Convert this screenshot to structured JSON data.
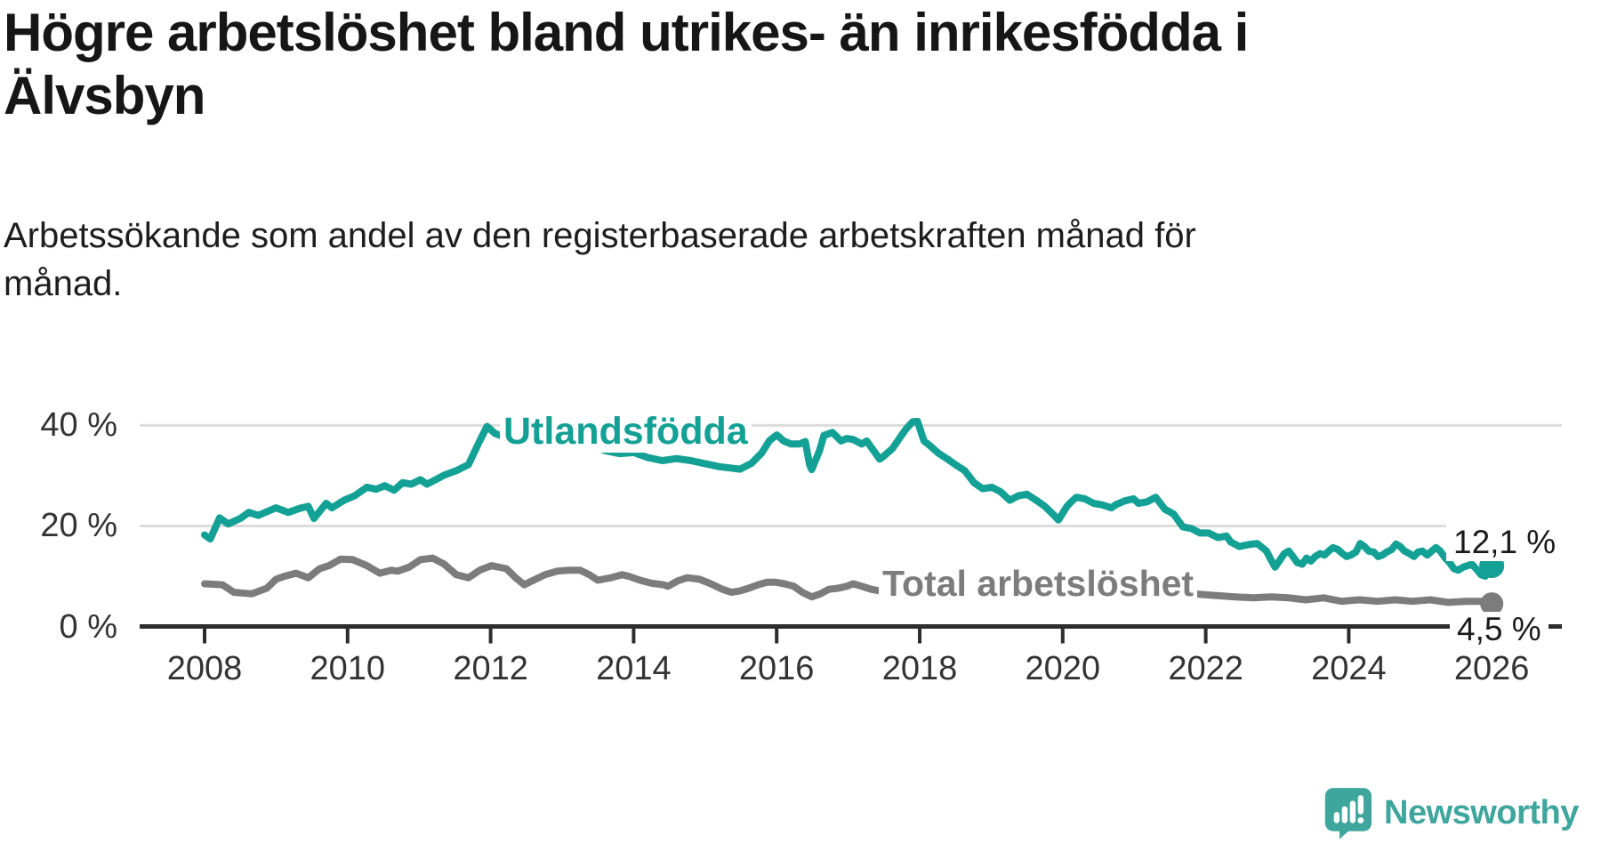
{
  "title_line1": "Högre arbetslöshet bland utrikes- än inrikesfödda i",
  "title_line2": "Älvsbyn",
  "subtitle_line1": "Arbetssökande som andel av den registerbaserade arbetskraften månad för",
  "subtitle_line2": "månad.",
  "chart": {
    "y_axis": {
      "ticks": [
        {
          "label": "0 %",
          "value": 0
        },
        {
          "label": "20 %",
          "value": 20
        },
        {
          "label": "40 %",
          "value": 40
        }
      ]
    },
    "x_axis": {
      "ticks": [
        {
          "label": "2008",
          "year": 2008
        },
        {
          "label": "2010",
          "year": 2010
        },
        {
          "label": "2012",
          "year": 2012
        },
        {
          "label": "2014",
          "year": 2014
        },
        {
          "label": "2016",
          "year": 2016
        },
        {
          "label": "2018",
          "year": 2018
        },
        {
          "label": "2020",
          "year": 2020
        },
        {
          "label": "2022",
          "year": 2022
        },
        {
          "label": "2024",
          "year": 2024
        },
        {
          "label": "2026",
          "year": 2026
        }
      ]
    },
    "series_labels": {
      "utlandsfodda": "Utlandsfödda",
      "total": "Total arbetslöshet"
    },
    "end_labels": {
      "utlandsfodda": "12,1 %",
      "total": "4,5 %"
    }
  },
  "chart_data": {
    "type": "line",
    "title": "Högre arbetslöshet bland utrikes- än inrikesfödda i Älvsbyn",
    "subtitle": "Arbetssökande som andel av den registerbaserade arbetskraften månad för månad.",
    "unit": "percent",
    "x_range": [
      2008,
      2026
    ],
    "ylim": [
      0,
      44
    ],
    "grid": "horizontal",
    "legend_position": "inline-labels",
    "series": [
      {
        "name": "Utlandsfödda",
        "color": "#13a095",
        "end_label": "12,1 %",
        "end_value": 12.1,
        "points": [
          [
            2008.0,
            18.2
          ],
          [
            2008.08,
            17.4
          ],
          [
            2008.21,
            21.6
          ],
          [
            2008.33,
            20.4
          ],
          [
            2008.5,
            21.5
          ],
          [
            2008.62,
            22.7
          ],
          [
            2008.75,
            22.1
          ],
          [
            2009.0,
            23.6
          ],
          [
            2009.17,
            22.7
          ],
          [
            2009.33,
            23.5
          ],
          [
            2009.45,
            23.9
          ],
          [
            2009.53,
            21.5
          ],
          [
            2009.7,
            24.5
          ],
          [
            2009.78,
            23.6
          ],
          [
            2009.95,
            25.1
          ],
          [
            2010.1,
            26.0
          ],
          [
            2010.27,
            27.7
          ],
          [
            2010.4,
            27.3
          ],
          [
            2010.52,
            28.0
          ],
          [
            2010.65,
            27.1
          ],
          [
            2010.77,
            28.6
          ],
          [
            2010.89,
            28.3
          ],
          [
            2011.02,
            29.2
          ],
          [
            2011.11,
            28.3
          ],
          [
            2011.27,
            29.5
          ],
          [
            2011.35,
            30.1
          ],
          [
            2011.52,
            31.0
          ],
          [
            2011.69,
            32.2
          ],
          [
            2011.85,
            37.0
          ],
          [
            2011.95,
            39.8
          ],
          [
            2012.06,
            38.4
          ],
          [
            2012.19,
            37.7
          ],
          [
            2012.25,
            39.8
          ],
          [
            2012.4,
            38.0
          ],
          [
            2012.6,
            37.0
          ],
          [
            2012.8,
            36.4
          ],
          [
            2013.0,
            36.6
          ],
          [
            2013.2,
            35.6
          ],
          [
            2013.4,
            36.0
          ],
          [
            2013.6,
            35.0
          ],
          [
            2013.8,
            34.4
          ],
          [
            2014.0,
            34.6
          ],
          [
            2014.2,
            33.6
          ],
          [
            2014.4,
            33.0
          ],
          [
            2014.6,
            33.4
          ],
          [
            2014.8,
            33.0
          ],
          [
            2015.0,
            32.4
          ],
          [
            2015.2,
            31.8
          ],
          [
            2015.49,
            31.3
          ],
          [
            2015.65,
            32.5
          ],
          [
            2015.79,
            34.5
          ],
          [
            2015.9,
            37.0
          ],
          [
            2016.0,
            38.1
          ],
          [
            2016.1,
            36.9
          ],
          [
            2016.2,
            36.3
          ],
          [
            2016.32,
            36.3
          ],
          [
            2016.4,
            36.8
          ],
          [
            2016.46,
            32.2
          ],
          [
            2016.49,
            31.2
          ],
          [
            2016.6,
            35.0
          ],
          [
            2016.66,
            38.0
          ],
          [
            2016.78,
            38.6
          ],
          [
            2016.9,
            36.9
          ],
          [
            2016.98,
            37.4
          ],
          [
            2017.07,
            37.2
          ],
          [
            2017.19,
            36.3
          ],
          [
            2017.26,
            36.9
          ],
          [
            2017.32,
            35.7
          ],
          [
            2017.44,
            33.3
          ],
          [
            2017.5,
            33.9
          ],
          [
            2017.62,
            35.4
          ],
          [
            2017.75,
            38.1
          ],
          [
            2017.81,
            39.3
          ],
          [
            2017.9,
            40.7
          ],
          [
            2017.97,
            40.8
          ],
          [
            2018.06,
            36.9
          ],
          [
            2018.14,
            36.0
          ],
          [
            2018.26,
            34.5
          ],
          [
            2018.39,
            33.3
          ],
          [
            2018.51,
            32.1
          ],
          [
            2018.63,
            31.0
          ],
          [
            2018.76,
            28.6
          ],
          [
            2018.88,
            27.4
          ],
          [
            2019.01,
            27.7
          ],
          [
            2019.13,
            26.8
          ],
          [
            2019.26,
            25.1
          ],
          [
            2019.38,
            26.0
          ],
          [
            2019.5,
            26.3
          ],
          [
            2019.63,
            25.1
          ],
          [
            2019.75,
            23.9
          ],
          [
            2019.88,
            22.1
          ],
          [
            2019.94,
            21.2
          ],
          [
            2020.06,
            23.9
          ],
          [
            2020.12,
            24.8
          ],
          [
            2020.19,
            25.7
          ],
          [
            2020.31,
            25.4
          ],
          [
            2020.43,
            24.5
          ],
          [
            2020.55,
            24.2
          ],
          [
            2020.68,
            23.6
          ],
          [
            2020.74,
            24.2
          ],
          [
            2020.87,
            25.0
          ],
          [
            2020.99,
            25.4
          ],
          [
            2021.06,
            24.5
          ],
          [
            2021.18,
            24.8
          ],
          [
            2021.3,
            25.7
          ],
          [
            2021.43,
            23.3
          ],
          [
            2021.55,
            22.4
          ],
          [
            2021.68,
            19.8
          ],
          [
            2021.8,
            19.5
          ],
          [
            2021.92,
            18.6
          ],
          [
            2022.04,
            18.6
          ],
          [
            2022.17,
            17.7
          ],
          [
            2022.29,
            18.0
          ],
          [
            2022.35,
            16.8
          ],
          [
            2022.47,
            15.9
          ],
          [
            2022.6,
            16.3
          ],
          [
            2022.72,
            16.5
          ],
          [
            2022.85,
            15.0
          ],
          [
            2022.91,
            13.3
          ],
          [
            2022.97,
            11.8
          ],
          [
            2023.1,
            14.5
          ],
          [
            2023.16,
            15.0
          ],
          [
            2023.22,
            13.9
          ],
          [
            2023.28,
            12.7
          ],
          [
            2023.35,
            12.4
          ],
          [
            2023.41,
            13.6
          ],
          [
            2023.47,
            13.0
          ],
          [
            2023.53,
            13.9
          ],
          [
            2023.6,
            14.5
          ],
          [
            2023.66,
            14.2
          ],
          [
            2023.72,
            15.0
          ],
          [
            2023.78,
            15.7
          ],
          [
            2023.85,
            15.3
          ],
          [
            2023.91,
            14.5
          ],
          [
            2023.97,
            13.9
          ],
          [
            2024.03,
            14.2
          ],
          [
            2024.1,
            14.8
          ],
          [
            2024.16,
            16.5
          ],
          [
            2024.22,
            15.9
          ],
          [
            2024.28,
            15.0
          ],
          [
            2024.35,
            14.8
          ],
          [
            2024.41,
            13.9
          ],
          [
            2024.47,
            14.2
          ],
          [
            2024.53,
            14.8
          ],
          [
            2024.6,
            15.3
          ],
          [
            2024.66,
            16.4
          ],
          [
            2024.72,
            15.9
          ],
          [
            2024.78,
            15.0
          ],
          [
            2024.85,
            14.5
          ],
          [
            2024.91,
            13.9
          ],
          [
            2024.97,
            14.8
          ],
          [
            2025.03,
            15.0
          ],
          [
            2025.1,
            14.2
          ],
          [
            2025.16,
            15.0
          ],
          [
            2025.22,
            15.7
          ],
          [
            2025.28,
            15.0
          ],
          [
            2025.35,
            13.6
          ],
          [
            2025.41,
            12.7
          ],
          [
            2025.47,
            11.5
          ],
          [
            2025.53,
            11.2
          ],
          [
            2025.6,
            11.8
          ],
          [
            2025.66,
            12.1
          ],
          [
            2025.72,
            12.4
          ],
          [
            2025.78,
            11.5
          ],
          [
            2025.85,
            10.3
          ],
          [
            2025.91,
            10.0
          ],
          [
            2026.0,
            12.1
          ]
        ]
      },
      {
        "name": "Total arbetslöshet",
        "color": "#7c7c7c",
        "end_label": "4,5 %",
        "end_value": 4.5,
        "points": [
          [
            2008.0,
            8.5
          ],
          [
            2008.12,
            8.4
          ],
          [
            2008.25,
            8.3
          ],
          [
            2008.41,
            6.8
          ],
          [
            2008.58,
            6.6
          ],
          [
            2008.66,
            6.5
          ],
          [
            2008.87,
            7.6
          ],
          [
            2009.0,
            9.4
          ],
          [
            2009.12,
            10.0
          ],
          [
            2009.28,
            10.6
          ],
          [
            2009.45,
            9.7
          ],
          [
            2009.61,
            11.5
          ],
          [
            2009.74,
            12.1
          ],
          [
            2009.9,
            13.4
          ],
          [
            2010.07,
            13.3
          ],
          [
            2010.27,
            12.1
          ],
          [
            2010.45,
            10.6
          ],
          [
            2010.61,
            11.2
          ],
          [
            2010.7,
            11.0
          ],
          [
            2010.86,
            11.8
          ],
          [
            2011.02,
            13.3
          ],
          [
            2011.19,
            13.6
          ],
          [
            2011.35,
            12.4
          ],
          [
            2011.52,
            10.3
          ],
          [
            2011.69,
            9.7
          ],
          [
            2011.85,
            11.2
          ],
          [
            2012.01,
            12.1
          ],
          [
            2012.22,
            11.5
          ],
          [
            2012.35,
            9.7
          ],
          [
            2012.47,
            8.3
          ],
          [
            2012.6,
            9.2
          ],
          [
            2012.76,
            10.3
          ],
          [
            2012.93,
            11.0
          ],
          [
            2013.09,
            11.2
          ],
          [
            2013.25,
            11.2
          ],
          [
            2013.38,
            10.3
          ],
          [
            2013.5,
            9.2
          ],
          [
            2013.68,
            9.7
          ],
          [
            2013.84,
            10.3
          ],
          [
            2013.93,
            10.0
          ],
          [
            2014.09,
            9.2
          ],
          [
            2014.25,
            8.6
          ],
          [
            2014.42,
            8.3
          ],
          [
            2014.48,
            8.0
          ],
          [
            2014.62,
            9.1
          ],
          [
            2014.75,
            9.7
          ],
          [
            2014.92,
            9.4
          ],
          [
            2015.08,
            8.5
          ],
          [
            2015.24,
            7.4
          ],
          [
            2015.37,
            6.8
          ],
          [
            2015.49,
            7.1
          ],
          [
            2015.61,
            7.6
          ],
          [
            2015.74,
            8.3
          ],
          [
            2015.86,
            8.8
          ],
          [
            2015.99,
            8.8
          ],
          [
            2016.11,
            8.5
          ],
          [
            2016.24,
            8.0
          ],
          [
            2016.36,
            6.8
          ],
          [
            2016.49,
            5.9
          ],
          [
            2016.61,
            6.5
          ],
          [
            2016.73,
            7.4
          ],
          [
            2016.86,
            7.6
          ],
          [
            2016.98,
            8.0
          ],
          [
            2017.07,
            8.5
          ],
          [
            2017.19,
            8.0
          ],
          [
            2017.32,
            7.4
          ],
          [
            2017.44,
            7.1
          ],
          [
            2017.57,
            8.3
          ],
          [
            2017.75,
            8.0
          ],
          [
            2018.0,
            7.6
          ],
          [
            2018.25,
            7.2
          ],
          [
            2018.5,
            6.9
          ],
          [
            2018.75,
            6.7
          ],
          [
            2019.0,
            6.9
          ],
          [
            2019.25,
            6.6
          ],
          [
            2019.5,
            6.4
          ],
          [
            2019.75,
            6.7
          ],
          [
            2020.0,
            7.3
          ],
          [
            2020.25,
            8.7
          ],
          [
            2020.5,
            8.8
          ],
          [
            2020.75,
            8.4
          ],
          [
            2021.0,
            8.1
          ],
          [
            2021.25,
            7.5
          ],
          [
            2021.5,
            7.0
          ],
          [
            2021.75,
            6.6
          ],
          [
            2022.0,
            6.3
          ],
          [
            2022.2,
            6.1
          ],
          [
            2022.41,
            5.9
          ],
          [
            2022.66,
            5.7
          ],
          [
            2022.91,
            5.9
          ],
          [
            2023.16,
            5.7
          ],
          [
            2023.4,
            5.3
          ],
          [
            2023.65,
            5.7
          ],
          [
            2023.9,
            5.0
          ],
          [
            2024.15,
            5.3
          ],
          [
            2024.4,
            5.0
          ],
          [
            2024.65,
            5.3
          ],
          [
            2024.89,
            5.0
          ],
          [
            2025.14,
            5.3
          ],
          [
            2025.39,
            4.8
          ],
          [
            2025.64,
            5.0
          ],
          [
            2025.89,
            5.0
          ],
          [
            2026.0,
            4.5
          ]
        ]
      }
    ]
  },
  "logo": {
    "text": "Newsworthy",
    "icon": "newsworthy-speech-bubble-chart-icon"
  },
  "colors": {
    "accent_teal": "#13a095",
    "line_gray": "#7c7c7c",
    "gridline": "#dcdcdc",
    "axis": "#2d2d2d",
    "text": "#161616",
    "logo_teal": "#3ea69d"
  }
}
